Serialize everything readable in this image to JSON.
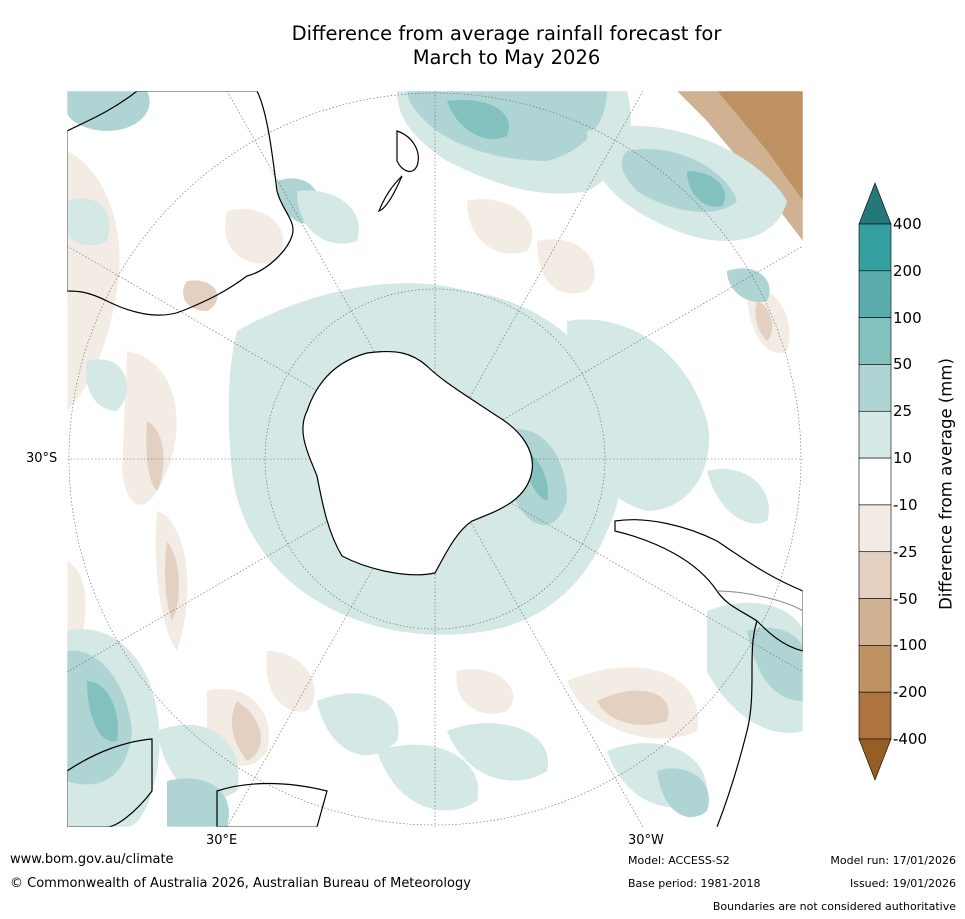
{
  "title": {
    "line1": "Difference from average rainfall forecast for",
    "line2": "March to May 2026"
  },
  "map": {
    "lat_label": "30°S",
    "lon_labels": [
      "30°E",
      "30°W"
    ]
  },
  "colorbar": {
    "title": "Difference from average (mm)",
    "ticks": [
      "400",
      "200",
      "100",
      "50",
      "25",
      "10",
      "-10",
      "-25",
      "-50",
      "-100",
      "-200",
      "-400"
    ],
    "colors": [
      "#25787a",
      "#339f9e",
      "#5aadac",
      "#83c1bf",
      "#aed5d3",
      "#d4e8e6",
      "#ffffff",
      "#f2ece5",
      "#e3d0c0",
      "#d0b192",
      "#bf9263",
      "#ad7440",
      "#955e24"
    ]
  },
  "footer": {
    "website": "www.bom.gov.au/climate",
    "copyright": "© Commonwealth of Australia 2026, Australian Bureau of Meteorology",
    "model": "Model: ACCESS-S2",
    "base_period": "Base period: 1981-2018",
    "model_run": "Model run: 17/01/2026",
    "issued": "Issued: 19/01/2026",
    "disclaimer": "Boundaries are not considered authoritative"
  }
}
